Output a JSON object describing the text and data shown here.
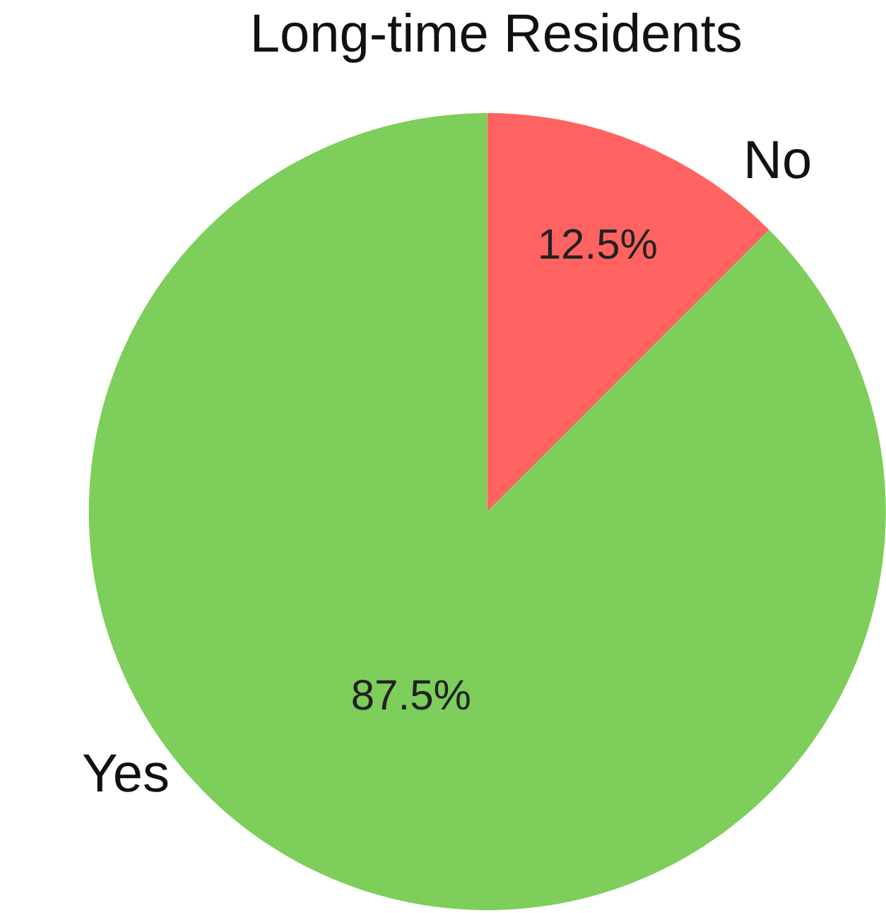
{
  "chart_data": {
    "type": "pie",
    "title": "Long-time Residents",
    "categories": [
      "No",
      "Yes"
    ],
    "values": [
      12.5,
      87.5
    ],
    "value_labels": [
      "12.5%",
      "87.5%"
    ],
    "colors": [
      "#ff6361",
      "#7dce5a"
    ],
    "legend": false
  }
}
